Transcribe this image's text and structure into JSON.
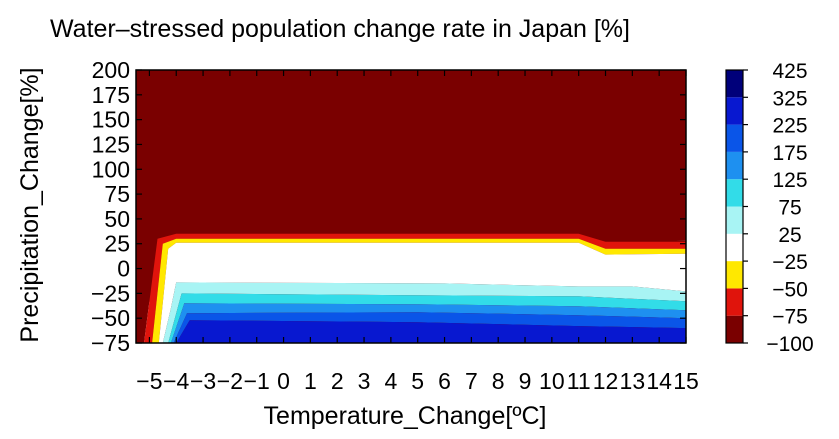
{
  "chart_data": {
    "type": "heatmap",
    "subtype": "filled-contour",
    "title": "Water–stressed population change rate in Japan [%]",
    "xlabel": "Temperature_Change[ºC]",
    "ylabel": "Precipitation_Change[%]",
    "x_ticks": [
      -5,
      -4,
      -3,
      -2,
      -1,
      0,
      1,
      2,
      3,
      4,
      5,
      6,
      7,
      8,
      9,
      10,
      11,
      12,
      13,
      14,
      15
    ],
    "y_ticks": [
      200,
      175,
      150,
      125,
      100,
      75,
      50,
      25,
      0,
      -25,
      -50,
      -75
    ],
    "xlim": [
      -5.5,
      15
    ],
    "ylim": [
      -75,
      200
    ],
    "grid": false,
    "colorbar": {
      "position": "right",
      "levels": [
        -100,
        -75,
        -50,
        -25,
        25,
        75,
        125,
        175,
        225,
        325,
        425
      ],
      "labels": [
        "425",
        "325",
        "225",
        "175",
        "125",
        "75",
        "25",
        "−25",
        "−50",
        "−75",
        "−100"
      ],
      "colors": [
        "#7a0000",
        "#e0140c",
        "#ffe800",
        "#ffffff",
        "#a8f4f4",
        "#32dce8",
        "#1e90f0",
        "#0a55e8",
        "#0818d0",
        "#00007a"
      ]
    },
    "colors": {
      "range_neg100_to_neg75": "#7a0000",
      "range_neg75_to_neg50": "#e0140c",
      "range_neg50_to_neg25": "#ffe800",
      "range_neg25_to_25": "#ffffff",
      "range_25_to_75": "#a8f4f4",
      "range_75_to_125": "#32dce8",
      "range_125_to_175": "#1e90f0",
      "range_175_to_225": "#0a55e8",
      "range_225_to_325": "#0818d0",
      "range_325_to_425": "#00007a"
    },
    "contour_bands": [
      {
        "range": [
          -100,
          -75
        ],
        "color_key": "range_neg100_to_neg75",
        "outline": [
          [
            -5.5,
            -75
          ],
          [
            -5.5,
            200
          ],
          [
            15,
            200
          ],
          [
            15,
            -75
          ],
          [
            -5,
            -75
          ],
          [
            -5,
            25
          ],
          [
            -4.5,
            37
          ],
          [
            -4,
            40
          ],
          [
            11,
            40
          ],
          [
            12,
            32
          ],
          [
            15,
            32
          ],
          [
            15,
            28
          ],
          [
            12,
            27
          ],
          [
            11,
            35
          ],
          [
            -4,
            35
          ],
          [
            -4.7,
            30
          ],
          [
            -5.2,
            -75
          ]
        ]
      },
      {
        "range": [
          -75,
          -50
        ],
        "color_key": "range_neg75_to_neg50",
        "outline": [
          [
            -5.2,
            -75
          ],
          [
            -4.7,
            30
          ],
          [
            -4,
            35
          ],
          [
            11,
            35
          ],
          [
            12,
            27
          ],
          [
            15,
            27
          ],
          [
            15,
            20
          ],
          [
            12,
            20
          ],
          [
            11,
            30
          ],
          [
            -4,
            30
          ],
          [
            -4.5,
            25
          ],
          [
            -4.9,
            -75
          ]
        ]
      },
      {
        "range": [
          -50,
          -25
        ],
        "color_key": "range_neg50_to_neg25",
        "outline": [
          [
            -4.9,
            -75
          ],
          [
            -4.5,
            25
          ],
          [
            -4,
            30
          ],
          [
            11,
            30
          ],
          [
            12,
            20
          ],
          [
            15,
            20
          ],
          [
            15,
            15
          ],
          [
            12,
            14
          ],
          [
            11,
            26
          ],
          [
            -4,
            26
          ],
          [
            -4.3,
            20
          ],
          [
            -4.65,
            -75
          ]
        ]
      },
      {
        "range": [
          -25,
          25
        ],
        "color_key": "range_neg25_to_25",
        "outline": [
          [
            -4.65,
            -75
          ],
          [
            -4.3,
            20
          ],
          [
            -4,
            26
          ],
          [
            11,
            26
          ],
          [
            12,
            14
          ],
          [
            15,
            15
          ],
          [
            15,
            -23
          ],
          [
            13,
            -18
          ],
          [
            11,
            -18
          ],
          [
            6,
            -15
          ],
          [
            -4,
            -14
          ],
          [
            -4.2,
            -40
          ],
          [
            -4.5,
            -75
          ]
        ]
      },
      {
        "range": [
          25,
          75
        ],
        "color_key": "range_25_to_75",
        "outline": [
          [
            -4.5,
            -75
          ],
          [
            -4.2,
            -40
          ],
          [
            -4,
            -14
          ],
          [
            6,
            -15
          ],
          [
            11,
            -18
          ],
          [
            13,
            -18
          ],
          [
            15,
            -23
          ],
          [
            15,
            -33
          ],
          [
            11,
            -28
          ],
          [
            5,
            -27
          ],
          [
            -3.8,
            -25
          ],
          [
            -4.3,
            -75
          ]
        ]
      },
      {
        "range": [
          75,
          125
        ],
        "color_key": "range_75_to_125",
        "outline": [
          [
            -4.3,
            -75
          ],
          [
            -3.8,
            -25
          ],
          [
            5,
            -27
          ],
          [
            11,
            -28
          ],
          [
            15,
            -33
          ],
          [
            15,
            -42
          ],
          [
            11,
            -38
          ],
          [
            5,
            -36
          ],
          [
            -3.7,
            -35
          ],
          [
            -4.2,
            -75
          ]
        ]
      },
      {
        "range": [
          125,
          175
        ],
        "color_key": "range_125_to_175",
        "outline": [
          [
            -4.2,
            -75
          ],
          [
            -3.7,
            -35
          ],
          [
            5,
            -36
          ],
          [
            11,
            -38
          ],
          [
            15,
            -42
          ],
          [
            15,
            -50
          ],
          [
            11,
            -47
          ],
          [
            5,
            -44
          ],
          [
            -3.6,
            -45
          ],
          [
            -4.1,
            -75
          ]
        ]
      },
      {
        "range": [
          175,
          225
        ],
        "color_key": "range_175_to_225",
        "outline": [
          [
            -4.1,
            -75
          ],
          [
            -3.6,
            -45
          ],
          [
            5,
            -44
          ],
          [
            11,
            -47
          ],
          [
            15,
            -50
          ],
          [
            15,
            -60
          ],
          [
            11,
            -58
          ],
          [
            5,
            -54
          ],
          [
            -3.5,
            -52
          ],
          [
            -4,
            -75
          ]
        ]
      },
      {
        "range": [
          225,
          325
        ],
        "color_key": "range_225_to_325",
        "outline": [
          [
            -4,
            -75
          ],
          [
            -3.5,
            -52
          ],
          [
            5,
            -54
          ],
          [
            11,
            -58
          ],
          [
            15,
            -60
          ],
          [
            15,
            -75
          ]
        ]
      }
    ]
  }
}
